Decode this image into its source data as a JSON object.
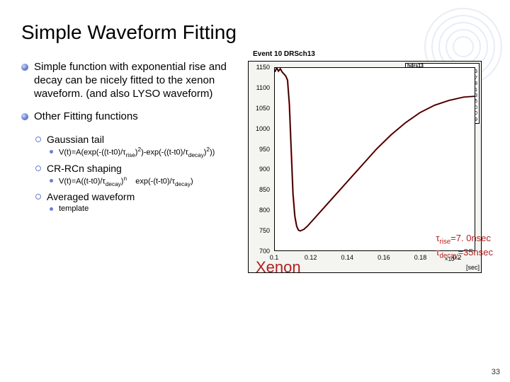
{
  "title": "Simple Waveform Fitting",
  "bullets": {
    "b1a": "Simple function with exponential rise and decay can be nicely fitted to the xenon waveform. (and also LYSO waveform)",
    "b1b": "Other Fitting functions",
    "gauss": "Gaussian tail",
    "gauss_formula_html": "V(t)=A(exp(-((t-t0)/τ<sub>rise</sub>)<sup>2</sup>)-exp(-((t-t0)/τ<sub>decay</sub>)<sup>2</sup>))",
    "crrcn": "CR-RCn shaping",
    "crrcn_formula_html": "V(t)=A((t-t0)/τ<sub>decay</sub>)<sup>n</sup>&nbsp;&nbsp;&nbsp;&nbsp;exp(-(t-t0)/τ<sub>decay</sub>)",
    "avg": "Averaged waveform",
    "template": "template"
  },
  "plot": {
    "title": "Event 10 DRSch13",
    "hist_name": "hdrs13",
    "stats": {
      "Entries": "1023",
      "Mean": "1.305e-07",
      "RMS": "4.372e-08",
      "chi2ndf": "30.00 / 471",
      "p0": "1148 ± 2.3",
      "p1": "744.5 ± 34.5",
      "p2": "1.015e-07 ± 1.304e-10",
      "p3": "7.015e-09 ± 4.358e-10",
      "p4": "3.508e-08 ± 2.38e-09"
    },
    "ylim": [
      700,
      1150
    ],
    "yticks": [
      700,
      750,
      800,
      850,
      900,
      950,
      1000,
      1050,
      1100,
      1150
    ],
    "xlim": [
      1e-07,
      2.1e-07
    ],
    "xticks_raw": [
      0.1,
      0.12,
      0.14,
      0.16,
      0.18,
      0.2
    ],
    "x_exponent": "×10⁻⁶",
    "xlabel": "[sec]",
    "curve_color": "#c02020",
    "fit_color": "#000000",
    "background_color": "#ffffff",
    "frame_color": "#000000",
    "data_points": [
      [
        0.1,
        1140
      ],
      [
        0.101,
        1150
      ],
      [
        0.102,
        1142
      ],
      [
        0.103,
        1148
      ],
      [
        0.104,
        1140
      ],
      [
        0.105,
        1135
      ],
      [
        0.106,
        1130
      ],
      [
        0.107,
        1120
      ],
      [
        0.108,
        1060
      ],
      [
        0.109,
        950
      ],
      [
        0.11,
        840
      ],
      [
        0.111,
        785
      ],
      [
        0.112,
        760
      ],
      [
        0.113,
        750
      ],
      [
        0.114,
        748
      ],
      [
        0.116,
        752
      ],
      [
        0.118,
        760
      ],
      [
        0.12,
        770
      ],
      [
        0.124,
        790
      ],
      [
        0.128,
        810
      ],
      [
        0.132,
        830
      ],
      [
        0.136,
        850
      ],
      [
        0.14,
        870
      ],
      [
        0.148,
        910
      ],
      [
        0.156,
        950
      ],
      [
        0.164,
        985
      ],
      [
        0.172,
        1015
      ],
      [
        0.18,
        1040
      ],
      [
        0.188,
        1058
      ],
      [
        0.196,
        1070
      ],
      [
        0.204,
        1078
      ],
      [
        0.21,
        1080
      ]
    ]
  },
  "overlay": {
    "xenon": "Xenon",
    "tau_rise": "τ_rise=7.0nsec",
    "tau_decay": "τ_decay=35nsec"
  },
  "page_number": "33",
  "motif_color": "#bfcbe8",
  "text_color": "#000000",
  "accent_color": "#b02020"
}
